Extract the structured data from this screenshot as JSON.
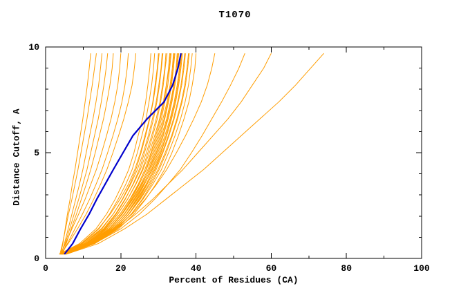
{
  "chart_data": {
    "type": "line",
    "title": "T1070",
    "xlabel": "Percent of Residues (CA)",
    "ylabel": "Distance Cutoff, A",
    "xlim": [
      0,
      100
    ],
    "ylim": [
      0,
      10
    ],
    "x_major_ticks": [
      0,
      20,
      40,
      60,
      80,
      100
    ],
    "x_minor_step": 10,
    "y_major_ticks": [
      0,
      5,
      10
    ],
    "y_minor_step": 1,
    "grid": false,
    "legend": "none",
    "colors": {
      "prediction_lines": "#FF9D00",
      "reference_line": "#0000CC",
      "frame": "#000000",
      "background": "#FFFFFF"
    },
    "y_levels": [
      0.2,
      0.7,
      1.4,
      2.1,
      2.8,
      3.5,
      4.2,
      5.0,
      5.8,
      6.6,
      7.4,
      8.2,
      9.0,
      9.7
    ],
    "prediction_series_x": [
      [
        4.0,
        4.6,
        5.2,
        5.8,
        6.5,
        7.1,
        7.8,
        8.5,
        9.2,
        9.9,
        10.5,
        11.1,
        11.6,
        12.0
      ],
      [
        3.8,
        4.5,
        5.3,
        6.1,
        7.0,
        7.8,
        8.6,
        9.4,
        10.2,
        11.0,
        11.7,
        12.4,
        13.0,
        13.5
      ],
      [
        4.2,
        5.0,
        6.0,
        7.0,
        8.0,
        9.0,
        9.9,
        10.8,
        11.7,
        12.6,
        13.4,
        14.1,
        14.6,
        15.0
      ],
      [
        4.0,
        5.2,
        6.4,
        7.6,
        8.8,
        9.9,
        11.0,
        12.0,
        13.0,
        14.0,
        14.8,
        15.5,
        16.1,
        16.5
      ],
      [
        4.5,
        5.5,
        6.8,
        8.2,
        9.5,
        10.8,
        12.0,
        13.2,
        14.3,
        15.4,
        16.3,
        17.1,
        17.7,
        18.0
      ],
      [
        4.0,
        5.3,
        7.0,
        8.8,
        10.5,
        12.0,
        13.5,
        14.9,
        16.2,
        17.4,
        18.4,
        19.2,
        19.7,
        20.0
      ],
      [
        4.3,
        5.8,
        7.8,
        9.8,
        11.7,
        13.4,
        15.0,
        16.5,
        17.9,
        19.2,
        20.3,
        21.1,
        21.7,
        22.0
      ],
      [
        4.0,
        6.0,
        8.5,
        10.8,
        12.8,
        14.6,
        16.3,
        17.9,
        19.4,
        20.8,
        22.0,
        23.0,
        23.6,
        24.0
      ],
      [
        3.6,
        9.0,
        13.4,
        16.2,
        18.5,
        20.4,
        22.1,
        23.5,
        24.6,
        25.8,
        26.6,
        27.2,
        27.7,
        28.0
      ],
      [
        4.1,
        9.6,
        14.2,
        17.0,
        19.3,
        21.3,
        23.0,
        24.4,
        25.6,
        26.7,
        27.5,
        28.2,
        28.7,
        29.0
      ],
      [
        3.8,
        9.4,
        14.0,
        17.2,
        19.8,
        22.0,
        23.7,
        25.2,
        26.4,
        27.6,
        28.5,
        29.1,
        29.7,
        30.0
      ],
      [
        4.4,
        10.2,
        15.0,
        18.0,
        20.4,
        22.4,
        24.0,
        25.4,
        26.6,
        27.7,
        28.6,
        29.3,
        29.8,
        30.2
      ],
      [
        3.9,
        9.8,
        14.8,
        18.0,
        20.5,
        22.6,
        24.4,
        26.0,
        27.3,
        28.4,
        29.4,
        30.1,
        30.7,
        31.0
      ],
      [
        4.6,
        10.8,
        15.6,
        18.8,
        21.2,
        23.2,
        24.9,
        26.3,
        27.6,
        28.7,
        29.6,
        30.3,
        30.8,
        31.2
      ],
      [
        4.0,
        10.2,
        15.4,
        18.6,
        21.1,
        23.3,
        25.2,
        26.8,
        28.2,
        29.4,
        30.4,
        31.1,
        31.7,
        32.0
      ],
      [
        4.8,
        11.0,
        16.0,
        19.2,
        21.8,
        23.9,
        25.7,
        27.2,
        28.5,
        29.7,
        30.6,
        31.3,
        31.8,
        32.3
      ],
      [
        3.7,
        10.5,
        15.8,
        19.2,
        21.8,
        24.0,
        25.9,
        27.6,
        29.0,
        30.3,
        31.3,
        32.1,
        32.7,
        33.0
      ],
      [
        4.2,
        11.2,
        16.4,
        19.8,
        22.4,
        24.6,
        26.4,
        28.0,
        29.3,
        30.5,
        31.5,
        32.2,
        32.8,
        33.2
      ],
      [
        5.0,
        11.8,
        16.9,
        20.2,
        22.8,
        24.9,
        26.7,
        28.2,
        29.6,
        30.8,
        31.7,
        32.5,
        33.0,
        33.4
      ],
      [
        3.9,
        10.9,
        16.3,
        19.8,
        22.5,
        24.8,
        26.8,
        28.5,
        29.9,
        31.2,
        32.3,
        33.1,
        33.7,
        34.0
      ],
      [
        4.5,
        11.5,
        17.0,
        20.4,
        23.0,
        25.3,
        27.2,
        28.8,
        30.2,
        31.5,
        32.5,
        33.3,
        33.9,
        34.2
      ],
      [
        5.2,
        12.2,
        17.5,
        20.9,
        23.5,
        25.7,
        27.5,
        29.1,
        30.5,
        31.7,
        32.7,
        33.5,
        34.0,
        34.4
      ],
      [
        4.0,
        11.2,
        16.8,
        20.4,
        23.2,
        25.5,
        27.6,
        29.4,
        30.8,
        32.2,
        33.2,
        34.1,
        34.7,
        35.0
      ],
      [
        4.7,
        11.9,
        17.4,
        21.0,
        23.7,
        26.0,
        27.9,
        29.6,
        31.1,
        32.4,
        33.4,
        34.2,
        34.8,
        35.2
      ],
      [
        5.4,
        12.6,
        18.0,
        21.5,
        24.1,
        26.3,
        28.2,
        29.9,
        31.3,
        32.6,
        33.6,
        34.4,
        35.0,
        35.4
      ],
      [
        4.1,
        11.5,
        17.3,
        21.0,
        23.8,
        26.2,
        28.4,
        30.2,
        31.7,
        33.1,
        34.2,
        35.0,
        35.6,
        36.0
      ],
      [
        4.9,
        12.3,
        17.9,
        21.6,
        24.3,
        26.7,
        28.7,
        30.5,
        32.0,
        33.3,
        34.4,
        35.2,
        35.8,
        36.2
      ],
      [
        5.6,
        13.0,
        18.5,
        22.1,
        24.8,
        27.0,
        29.0,
        30.7,
        32.2,
        33.5,
        34.6,
        35.4,
        36.0,
        36.4
      ],
      [
        4.2,
        11.8,
        17.8,
        21.6,
        24.5,
        26.9,
        29.1,
        31.0,
        32.6,
        34.0,
        35.1,
        36.0,
        36.6,
        37.0
      ],
      [
        5.0,
        12.7,
        18.4,
        22.2,
        25.0,
        27.4,
        29.4,
        31.2,
        32.8,
        34.2,
        35.3,
        36.2,
        36.8,
        37.2
      ],
      [
        4.3,
        12.2,
        18.2,
        22.2,
        25.2,
        27.7,
        29.9,
        31.8,
        33.5,
        34.9,
        36.1,
        37.0,
        37.6,
        38.0
      ],
      [
        5.2,
        13.1,
        19.0,
        22.8,
        25.7,
        28.1,
        30.2,
        32.1,
        33.7,
        35.1,
        36.3,
        37.2,
        37.8,
        38.2
      ],
      [
        4.4,
        12.6,
        18.8,
        22.8,
        25.9,
        28.5,
        30.8,
        32.7,
        34.4,
        35.9,
        37.1,
        38.0,
        38.6,
        39.0
      ],
      [
        4.6,
        13.0,
        19.4,
        23.5,
        26.6,
        29.3,
        31.6,
        33.6,
        35.3,
        36.8,
        38.1,
        39.0,
        39.7,
        40.0
      ],
      [
        4.5,
        12.0,
        18.5,
        23.0,
        26.5,
        29.5,
        32.2,
        34.8,
        37.2,
        39.4,
        41.4,
        43.0,
        44.2,
        45.0
      ],
      [
        5.0,
        13.0,
        20.0,
        25.0,
        29.0,
        32.5,
        35.8,
        38.8,
        41.6,
        44.2,
        46.8,
        49.2,
        51.4,
        53.0
      ],
      [
        4.8,
        12.5,
        19.0,
        24.0,
        28.5,
        32.5,
        36.5,
        40.5,
        44.5,
        48.5,
        52.0,
        55.0,
        58.0,
        60.0
      ],
      [
        5.5,
        14.0,
        21.0,
        27.0,
        32.0,
        37.0,
        42.0,
        47.0,
        52.0,
        57.0,
        62.0,
        66.5,
        70.5,
        74.0
      ]
    ],
    "reference_series_x": [
      5.0,
      7.2,
      9.3,
      11.6,
      13.6,
      15.8,
      18.0,
      20.6,
      23.2,
      27.0,
      31.5,
      33.8,
      35.2,
      36.0
    ]
  }
}
